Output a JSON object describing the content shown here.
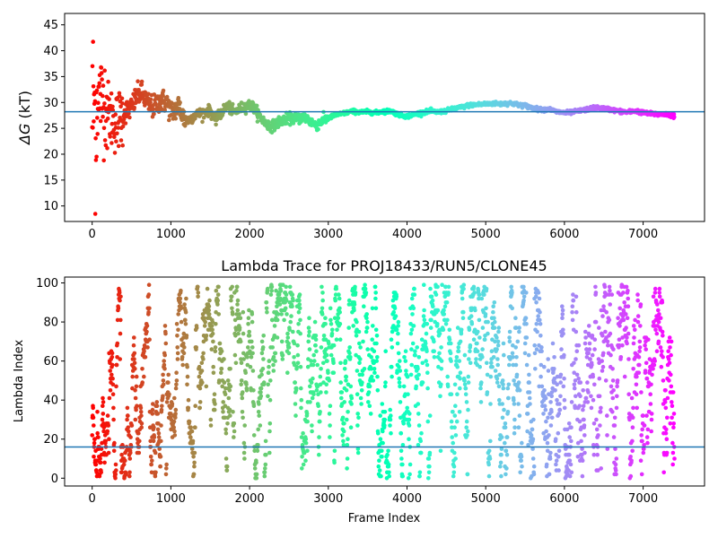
{
  "chart_data": [
    {
      "type": "scatter",
      "title": "",
      "xlabel": "",
      "ylabel": "ΔG (kT)",
      "ylabel_parts": {
        "symbol": "ΔG",
        "unit": " (kT)"
      },
      "xlim": [
        -350,
        7780
      ],
      "ylim": [
        7.0,
        47.2
      ],
      "xticks": [
        0,
        1000,
        2000,
        3000,
        4000,
        5000,
        6000,
        7000
      ],
      "yticks": [
        10,
        15,
        20,
        25,
        30,
        35,
        40,
        45
      ],
      "hline": 28.2,
      "hline_color": "#1f77b4",
      "colormap": "rainbow",
      "n_frames": 7400,
      "series": [
        {
          "trend_x": [
            0,
            20,
            40,
            60,
            80,
            100,
            130,
            160,
            200,
            250,
            300,
            350,
            400,
            450,
            500,
            560,
            620,
            700,
            780,
            860,
            940,
            1020,
            1100,
            1160,
            1220,
            1300,
            1400,
            1500,
            1560,
            1640,
            1720,
            1800,
            1900,
            2000,
            2060,
            2120,
            2200,
            2260,
            2300,
            2400,
            2500,
            2600,
            2700,
            2760,
            2800,
            2850,
            2900,
            3000,
            3100,
            3200,
            3300,
            3400,
            3500,
            3600,
            3700,
            3800,
            3900,
            4000,
            4100,
            4200,
            4300,
            4400,
            4500,
            4600,
            4700,
            4800,
            4900,
            5000,
            5100,
            5200,
            5300,
            5400,
            5500,
            5600,
            5700,
            5800,
            5900,
            6000,
            6100,
            6200,
            6300,
            6400,
            6500,
            6600,
            6700,
            6800,
            6900,
            7000,
            7100,
            7200,
            7300,
            7400
          ],
          "trend_y": [
            28.0,
            30.0,
            27.0,
            31.0,
            29.0,
            32.0,
            30.0,
            31.0,
            28.0,
            27.0,
            26.0,
            27.0,
            28.0,
            28.5,
            29.0,
            31.0,
            32.0,
            30.0,
            29.0,
            30.5,
            30.0,
            28.0,
            29.5,
            27.0,
            26.5,
            27.5,
            28.0,
            28.5,
            26.5,
            28.0,
            29.5,
            28.0,
            29.0,
            29.5,
            29.0,
            27.5,
            26.0,
            25.5,
            25.5,
            26.5,
            27.0,
            26.8,
            27.2,
            26.5,
            26.0,
            25.6,
            26.2,
            27.0,
            27.6,
            27.9,
            28.3,
            28.1,
            28.2,
            28.0,
            28.3,
            28.3,
            27.6,
            27.3,
            27.7,
            28.1,
            28.3,
            28.1,
            28.4,
            28.8,
            29.1,
            29.5,
            29.6,
            29.7,
            29.8,
            29.7,
            29.9,
            29.6,
            29.4,
            28.9,
            28.6,
            28.7,
            28.2,
            28.0,
            28.1,
            28.4,
            28.7,
            29.0,
            28.8,
            28.6,
            28.3,
            28.1,
            28.4,
            28.0,
            27.8,
            27.7,
            27.7,
            27.4
          ]
        }
      ]
    },
    {
      "type": "scatter",
      "title": "Lambda Trace for PROJ18433/RUN5/CLONE45",
      "xlabel": "Frame Index",
      "ylabel": "Lambda Index",
      "xlim": [
        -350,
        7780
      ],
      "ylim": [
        -4.0,
        103.0
      ],
      "xticks": [
        0,
        1000,
        2000,
        3000,
        4000,
        5000,
        6000,
        7000
      ],
      "yticks": [
        0,
        20,
        40,
        60,
        80,
        100
      ],
      "hline": 16.0,
      "hline_color": "#1f77b4",
      "colormap": "rainbow",
      "n_frames": 7400,
      "lambda_range": [
        0,
        99
      ]
    }
  ]
}
